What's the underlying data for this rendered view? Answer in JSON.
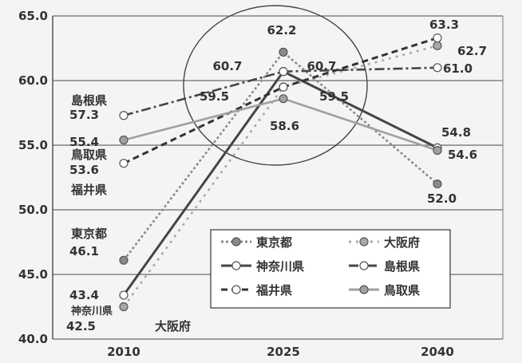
{
  "chart_data": {
    "type": "line",
    "x": [
      "2010",
      "2025",
      "2040"
    ],
    "ylim": [
      40.0,
      65.0
    ],
    "yticks": [
      "40.0",
      "45.0",
      "50.0",
      "55.0",
      "60.0",
      "65.0"
    ],
    "grid": true,
    "legend_position": "bottom-right",
    "series": [
      {
        "name": "東京都",
        "values": [
          46.1,
          62.2,
          52.0
        ],
        "color": "#8a8a8a",
        "marker": "filled",
        "dash": "3,3"
      },
      {
        "name": "大阪府",
        "values": [
          42.5,
          59.5,
          62.7
        ],
        "color": "#a8a8a8",
        "marker": "filled",
        "dash": "3,6"
      },
      {
        "name": "神奈川県",
        "values": [
          43.4,
          60.7,
          54.8
        ],
        "color": "#454545",
        "marker": "open",
        "dash": ""
      },
      {
        "name": "島根県",
        "values": [
          57.3,
          60.7,
          61.0
        ],
        "color": "#454545",
        "marker": "open",
        "dash": "12,4,3,4"
      },
      {
        "name": "福井県",
        "values": [
          53.6,
          59.5,
          63.3
        ],
        "color": "#333333",
        "marker": "open",
        "dash": "8,5"
      },
      {
        "name": "鳥取県",
        "values": [
          55.4,
          58.6,
          54.6
        ],
        "color": "#a0a0a0",
        "marker": "filled",
        "dash": ""
      }
    ],
    "data_labels": {
      "x2010": [
        "57.3",
        "55.4",
        "53.6",
        "46.1",
        "43.4",
        "42.5"
      ],
      "x2025": [
        "62.2",
        "60.7",
        "60.7",
        "59.5",
        "59.5",
        "58.6"
      ],
      "x2040": [
        "63.3",
        "62.7",
        "61.0",
        "54.8",
        "54.6",
        "52.0"
      ]
    },
    "category_labels": [
      "島根県",
      "鳥取県",
      "福井県",
      "東京都",
      "神奈川県",
      "大阪府"
    ]
  }
}
